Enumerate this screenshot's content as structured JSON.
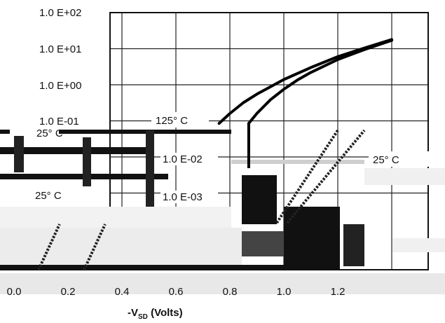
{
  "chart_data": {
    "type": "line",
    "title": "",
    "xlabel": "-V",
    "xlabel_sub": "SD",
    "xlabel_unit": " (Volts)",
    "ylabel": "",
    "x_scale": "linear",
    "y_scale": "log",
    "xlim": [
      0.0,
      1.4
    ],
    "ylim": [
      0.001,
      100
    ],
    "grid": true,
    "x_tick_labels": [
      "0.0",
      "0.2",
      "0.4",
      "0.6",
      "0.8",
      "1.0",
      "1.2"
    ],
    "y_tick_labels": [
      "1.0 E+02",
      "1.0 E+01",
      "1.0 E+00",
      "1.0  E-01",
      "1.0  E-02",
      "1.0  E-03"
    ],
    "annotations": [
      "125° C",
      "25° C",
      "25° C",
      "25° C"
    ],
    "series": [
      {
        "name": "125° C",
        "x": [
          0.76,
          0.8,
          0.85,
          0.9,
          1.0,
          1.1,
          1.2,
          1.3,
          1.4
        ],
        "y": [
          0.085,
          0.16,
          0.32,
          0.55,
          1.4,
          3.0,
          6.0,
          10.5,
          18.0
        ]
      },
      {
        "name": "25° C",
        "x": [
          0.87,
          0.9,
          0.95,
          1.0,
          1.05,
          1.1,
          1.2,
          1.3,
          1.4
        ],
        "y": [
          0.085,
          0.16,
          0.38,
          0.75,
          1.35,
          2.2,
          5.0,
          9.5,
          17.0
        ]
      }
    ]
  }
}
